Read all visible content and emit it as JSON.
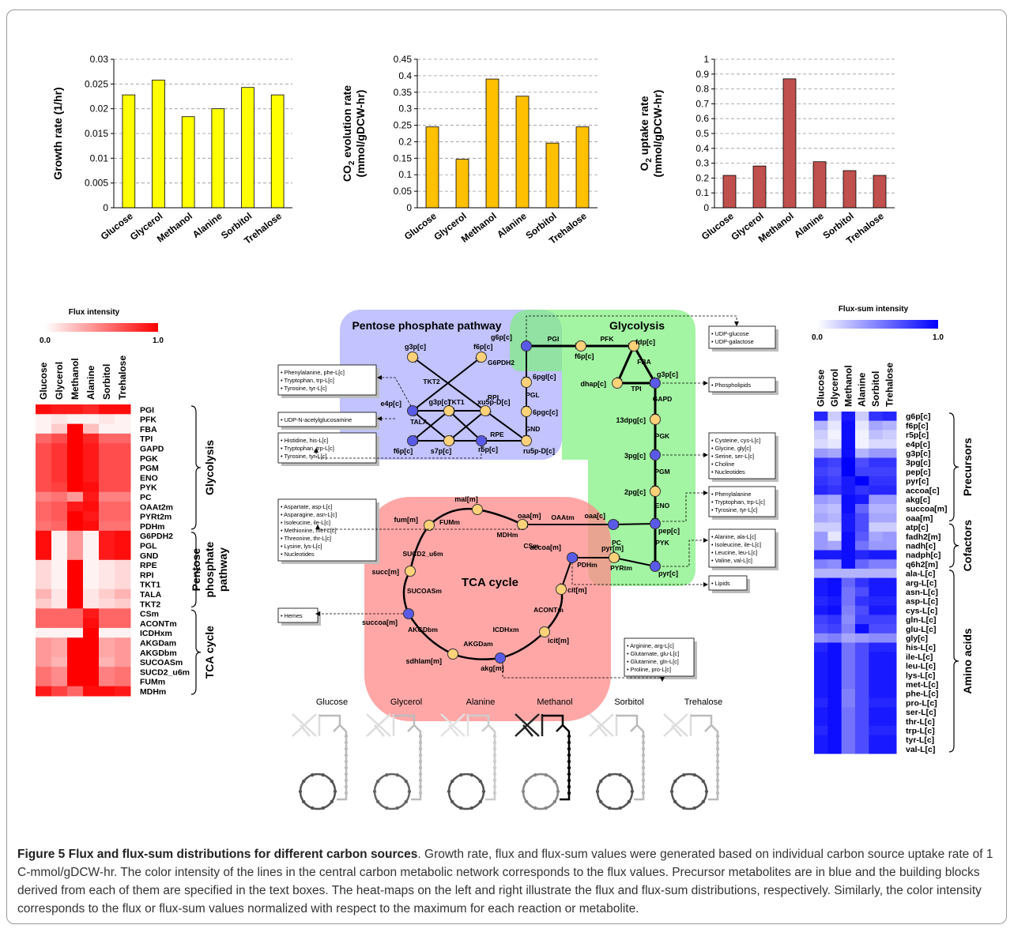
{
  "chart_data": [
    {
      "type": "bar",
      "ylabel": "Growth rate (1/hr)",
      "categories": [
        "Glucose",
        "Glycerol",
        "Methanol",
        "Alanine",
        "Sorbitol",
        "Trehalose"
      ],
      "values": [
        0.0228,
        0.0258,
        0.0184,
        0.02,
        0.0243,
        0.0228
      ],
      "ylim": [
        0,
        0.03
      ],
      "yticks": [
        "0",
        "0.005",
        "0.01",
        "0.015",
        "0.02",
        "0.025",
        "0.03"
      ],
      "grid": true,
      "color": "#ffff00"
    },
    {
      "type": "bar",
      "ylabel_line1": "CO",
      "ylabel_sub": "2",
      "ylabel_line1_rest": " evolution rate",
      "ylabel_line2": "(mmol/gDCW-hr)",
      "categories": [
        "Glucose",
        "Glycerol",
        "Methanol",
        "Alanine",
        "Sorbitol",
        "Trehalose"
      ],
      "values": [
        0.245,
        0.147,
        0.39,
        0.338,
        0.196,
        0.245
      ],
      "ylim": [
        0,
        0.45
      ],
      "yticks": [
        "0",
        "0.05",
        "0.1",
        "0.15",
        "0.2",
        "0.25",
        "0.3",
        "0.35",
        "0.4",
        "0.45"
      ],
      "grid": true,
      "color": "#ffc000"
    },
    {
      "type": "bar",
      "ylabel_line1": "O",
      "ylabel_sub": "2",
      "ylabel_line1_rest": " uptake rate",
      "ylabel_line2": "(mmol/gDCW-hr)",
      "categories": [
        "Glucose",
        "Glycerol",
        "Methanol",
        "Alanine",
        "Sorbitol",
        "Trehalose"
      ],
      "values": [
        0.218,
        0.281,
        0.868,
        0.31,
        0.25,
        0.218
      ],
      "ylim": [
        0,
        1
      ],
      "yticks": [
        "0",
        "0.1",
        "0.2",
        "0.3",
        "0.4",
        "0.5",
        "0.6",
        "0.7",
        "0.8",
        "0.9",
        "1"
      ],
      "grid": true,
      "color": "#c0504d"
    },
    {
      "type": "heatmap",
      "title": "Flux intensity",
      "scale_min": "0.0",
      "scale_max": "1.0",
      "columns": [
        "Glucose",
        "Glycerol",
        "Methanol",
        "Alanine",
        "Sorbitol",
        "Trehalose"
      ],
      "rows": [
        "PGI",
        "PFK",
        "FBA",
        "TPI",
        "GAPD",
        "PGK",
        "PGM",
        "ENO",
        "PYK",
        "PC",
        "OAAt2m",
        "PYRt2m",
        "PDHm",
        "G6PDH2",
        "PGL",
        "GND",
        "RPE",
        "RPI",
        "TKT1",
        "TALA",
        "TKT2",
        "CSm",
        "ACONTm",
        "ICDHxm",
        "AKGDam",
        "AKGDbm",
        "SUCOASm",
        "SUCD2_u6m",
        "FUMm",
        "MDHm"
      ],
      "groups": [
        "Glycolysis",
        "Pentose phosphate pathway",
        "TCA cycle"
      ],
      "values": [
        [
          0.95,
          0.9,
          0.9,
          0.85,
          0.95,
          0.95
        ],
        [
          0.05,
          0.1,
          0.05,
          0.05,
          0.1,
          0.05
        ],
        [
          0.05,
          0.2,
          1,
          0.25,
          0.05,
          0.05
        ],
        [
          0.6,
          0.7,
          1,
          0.85,
          0.6,
          0.6
        ],
        [
          0.7,
          0.8,
          1,
          0.9,
          0.7,
          0.7
        ],
        [
          0.7,
          0.8,
          1,
          0.9,
          0.7,
          0.7
        ],
        [
          0.7,
          0.8,
          1,
          0.9,
          0.7,
          0.7
        ],
        [
          0.7,
          0.8,
          1,
          0.9,
          0.7,
          0.7
        ],
        [
          0.7,
          0.75,
          1,
          0.95,
          0.7,
          0.7
        ],
        [
          0.5,
          0.55,
          0.4,
          0.9,
          0.5,
          0.5
        ],
        [
          0.6,
          0.65,
          0.9,
          0.95,
          0.6,
          0.6
        ],
        [
          0.6,
          0.65,
          1,
          0.9,
          0.6,
          0.6
        ],
        [
          0.55,
          0.6,
          1,
          0.95,
          0.55,
          0.55
        ],
        [
          0.95,
          0.05,
          0.4,
          0.05,
          0.9,
          0.95
        ],
        [
          0.95,
          0.05,
          0.4,
          0.05,
          0.9,
          0.95
        ],
        [
          0.95,
          0.05,
          0.4,
          0.05,
          0.9,
          0.95
        ],
        [
          0.15,
          0.05,
          1,
          0.05,
          0.1,
          0.15
        ],
        [
          0.15,
          0.05,
          1,
          0.05,
          0.1,
          0.15
        ],
        [
          0.15,
          0.05,
          1,
          0.05,
          0.1,
          0.15
        ],
        [
          0.3,
          0.1,
          1,
          0.1,
          0.2,
          0.3
        ],
        [
          0.2,
          0.1,
          1,
          0.1,
          0.15,
          0.2
        ],
        [
          0.6,
          0.6,
          0.6,
          0.9,
          0.6,
          0.6
        ],
        [
          0.6,
          0.6,
          0.6,
          0.95,
          0.6,
          0.6
        ],
        [
          0.05,
          0.05,
          0.05,
          1,
          0.05,
          0.05
        ],
        [
          0.4,
          0.35,
          1,
          1,
          0.35,
          0.4
        ],
        [
          0.4,
          0.35,
          1,
          1,
          0.35,
          0.4
        ],
        [
          0.4,
          0.3,
          1,
          1,
          0.3,
          0.4
        ],
        [
          0.55,
          0.45,
          1,
          1,
          0.5,
          0.55
        ],
        [
          0.55,
          0.45,
          1,
          1,
          0.5,
          0.55
        ],
        [
          0.9,
          0.75,
          0.6,
          0.95,
          0.95,
          0.9
        ]
      ]
    },
    {
      "type": "heatmap",
      "title": "Flux-sum intensity",
      "scale_min": "0.0",
      "scale_max": "1.0",
      "columns": [
        "Glucose",
        "Glycerol",
        "Methanol",
        "Alanine",
        "Sorbitol",
        "Trehalose"
      ],
      "rows": [
        "g6p[c]",
        "f6p[c]",
        "r5p[c]",
        "e4p[c]",
        "g3p[c]",
        "3pg[c]",
        "pep[c]",
        "pyr[c]",
        "accoa[c]",
        "akg[c]",
        "succoa[m]",
        "oaa[m]",
        "atp[c]",
        "fadh2[m]",
        "nadh[c]",
        "nadph[c]",
        "q6h2[m]",
        "ala-L[c]",
        "arg-L[c]",
        "asn-L[c]",
        "asp-L[c]",
        "cys-L[c]",
        "gln-L[c]",
        "glu-L[c]",
        "gly[c]",
        "his-L[c]",
        "ile-L[c]",
        "leu-L[c]",
        "lys-L[c]",
        "met-L[c]",
        "phe-L[c]",
        "pro-L[c]",
        "ser-L[c]",
        "thr-L[c]",
        "trp-L[c]",
        "tyr-L[c]",
        "val-L[c]"
      ],
      "groups": [
        "Precursors",
        "Cofactors",
        "Amino acids"
      ],
      "values": [
        [
          0.85,
          0.2,
          0.9,
          0.2,
          0.8,
          0.85
        ],
        [
          0.3,
          0.1,
          0.95,
          0.1,
          0.35,
          0.3
        ],
        [
          0.2,
          0.05,
          0.95,
          0.05,
          0.25,
          0.2
        ],
        [
          0.15,
          0.1,
          0.95,
          0.05,
          0.15,
          0.15
        ],
        [
          0.4,
          0.35,
          0.95,
          0.3,
          0.4,
          0.4
        ],
        [
          0.8,
          0.75,
          1,
          0.7,
          0.8,
          0.8
        ],
        [
          0.75,
          0.7,
          1,
          0.75,
          0.75,
          0.75
        ],
        [
          0.8,
          0.75,
          0.9,
          1,
          0.8,
          0.8
        ],
        [
          0.85,
          0.8,
          0.9,
          0.8,
          0.85,
          0.85
        ],
        [
          0.4,
          0.35,
          0.95,
          0.9,
          0.4,
          0.4
        ],
        [
          0.3,
          0.25,
          0.95,
          0.6,
          0.3,
          0.3
        ],
        [
          0.35,
          0.3,
          0.9,
          0.7,
          0.35,
          0.35
        ],
        [
          0.2,
          0.2,
          0.9,
          0.7,
          0.2,
          0.2
        ],
        [
          0.4,
          0.1,
          0.95,
          0.65,
          0.35,
          0.4
        ],
        [
          0.4,
          0.35,
          0.95,
          0.55,
          0.4,
          0.4
        ],
        [
          0.9,
          0.9,
          0.95,
          0.85,
          0.9,
          0.9
        ],
        [
          0.5,
          0.45,
          0.95,
          0.6,
          0.5,
          0.5
        ],
        [
          0.3,
          0.3,
          0.3,
          0.3,
          0.3,
          0.3
        ],
        [
          0.9,
          0.95,
          0.6,
          0.8,
          0.9,
          0.9
        ],
        [
          0.9,
          0.95,
          0.55,
          0.7,
          0.9,
          0.9
        ],
        [
          0.85,
          0.9,
          0.55,
          0.8,
          0.85,
          0.85
        ],
        [
          0.9,
          0.95,
          0.5,
          0.7,
          0.9,
          0.9
        ],
        [
          0.75,
          0.8,
          0.45,
          0.75,
          0.75,
          0.75
        ],
        [
          0.7,
          0.75,
          0.5,
          0.95,
          0.7,
          0.7
        ],
        [
          0.45,
          0.5,
          0.35,
          0.4,
          0.45,
          0.45
        ],
        [
          0.85,
          0.95,
          0.55,
          0.7,
          0.85,
          0.85
        ],
        [
          0.9,
          0.95,
          0.55,
          0.7,
          0.9,
          0.9
        ],
        [
          0.9,
          0.95,
          0.55,
          0.7,
          0.9,
          0.9
        ],
        [
          0.9,
          0.95,
          0.55,
          0.7,
          0.9,
          0.9
        ],
        [
          0.9,
          0.95,
          0.55,
          0.7,
          0.9,
          0.9
        ],
        [
          0.9,
          0.95,
          0.5,
          0.7,
          0.9,
          0.9
        ],
        [
          0.85,
          0.95,
          0.5,
          0.7,
          0.85,
          0.85
        ],
        [
          0.9,
          0.95,
          0.55,
          0.7,
          0.9,
          0.9
        ],
        [
          0.9,
          0.95,
          0.55,
          0.7,
          0.9,
          0.9
        ],
        [
          0.85,
          0.95,
          0.55,
          0.7,
          0.85,
          0.85
        ],
        [
          0.9,
          0.95,
          0.55,
          0.7,
          0.9,
          0.9
        ],
        [
          0.9,
          0.95,
          0.55,
          0.7,
          0.9,
          0.9
        ]
      ]
    }
  ],
  "network": {
    "regions": [
      "Pentose phosphate pathway",
      "Glycolysis",
      "TCA cycle"
    ],
    "metabolites": {
      "g6p": "g6p[c]",
      "f6p": "f6p[c]",
      "fdp": "fdp[c]",
      "dhap": "dhap[c]",
      "g3p": "g3p[c]",
      "13dpg": "13dpg[c]",
      "3pg": "3pg[c]",
      "2pg": "2pg[c]",
      "pep": "pep[c]",
      "pyr": "pyr[c]",
      "oaac": "oaa[c]",
      "pyrm": "pyr[m]",
      "accoa": "accoa[m]",
      "oaam": "oaa[m]",
      "malm": "mal[m]",
      "fumm": "fum[m]",
      "succm": "succ[m]",
      "succoa": "succoa[m]",
      "sdhlam": "sdhlam[m]",
      "akgm": "akg[m]",
      "icit": "icit[m]",
      "cit": "cit[m]",
      "ppp_6pgl": "6pgl[c]",
      "ppp_6pgc": "6pgc[c]",
      "ppp_ru5p": "ru5p-D[c]",
      "ppp_xu5p": "xu5p-D[c]",
      "ppp_r5p": "r5p[c]",
      "ppp_s7p": "s7p[c]",
      "ppp_g3p2": "g3p[c]",
      "ppp_e4p": "e4p[c]",
      "ppp_f6p2": "f6p[c]",
      "ppp_g3p1": "g3p[c]",
      "ppp_f6p1": "f6p[c]"
    },
    "reactions": {
      "PGI": "PGI",
      "PFK": "PFK",
      "FBA": "FBA",
      "TPI": "TPI",
      "GAPD": "GAPD",
      "PGK": "PGK",
      "PGM": "PGM",
      "ENO": "ENO",
      "PYK": "PYK",
      "PC": "PC",
      "OAAtm": "OAAtm",
      "PYRtm": "PYRtm",
      "PDHm": "PDHm",
      "CSm": "CSm",
      "ACONTm": "ACONTm",
      "ICDHxm": "ICDHxm",
      "AKGDam": "AKGDam",
      "AKGDbm": "AKGDbm",
      "SUCOASm": "SUCOASm",
      "SUCD2_u6m": "SUCD2_u6m",
      "FUMm": "FUMm",
      "MDHm": "MDHm",
      "G6PDH2": "G6PDH2",
      "PGL": "PGL",
      "GND": "GND",
      "RPE": "RPE",
      "RPI": "RPI",
      "TKT1": "TKT1",
      "TKT2": "TKT2",
      "TALA": "TALA"
    },
    "boxes": {
      "udp": [
        "• UDP-glucose",
        "• UDP-galactose"
      ],
      "phospho": [
        "• Phospholipids"
      ],
      "phe": [
        "• Phenylalanine, phe-L[c]",
        "• Tryptophan, trp-L[c]",
        "• Tyrosine, tyr-L[c]"
      ],
      "udpn": [
        "• UDP-N-acetylglucosamine"
      ],
      "his": [
        "• Histidine, his-L[c]",
        "• Tryptophan, trp-L[c]",
        "• Tyrosine, tyr-L[c]"
      ],
      "cys": [
        "• Cysteine, cys-L[c]",
        "• Glycine, gly[c]",
        "• Serine, ser-L[c]",
        "• Choline",
        "• Nucleotides"
      ],
      "aro": [
        "• Phenylalanine",
        "• Tryptophan, trp-L[c]",
        "• Tyrosine, tyr-L[c]"
      ],
      "asp": [
        "• Aspartate, asp-L[c]",
        "• Asparagine, asn-L[c]",
        "• Isoleucine, ile-L[c]",
        "• Methionine, met-L[c]",
        "• Threonine, thr-L[c]",
        "• Lysine, lys-L[c]",
        "• Nucleotides"
      ],
      "ala": [
        "• Alanine, ala-L[c]",
        "• Isoleucine, ile-L[c]",
        "• Leucine, leu-L[c]",
        "• Valine, val-L[c]"
      ],
      "lipids": [
        "• Lipids"
      ],
      "hemes": [
        "• Hemes"
      ],
      "arg": [
        "• Arginine, arg-L[c]",
        "• Glutamate, glu-L[c]",
        "• Glutamine, gln-L[c]",
        "• Proline, pro-L[c]"
      ]
    }
  },
  "thumbnails": {
    "labels": [
      "Glucose",
      "Glycerol",
      "Alanine",
      "Methanol",
      "Sorbitol",
      "Trehalose"
    ]
  },
  "caption": {
    "bold": "Figure 5 Flux and flux-sum distributions for different carbon sources",
    "text": ". Growth rate, flux and flux-sum values were generated based on individual carbon source uptake rate of 1 C-mmol/gDCW-hr. The color intensity of the lines in the central carbon metabolic network corresponds to the flux values. Precursor metabolites are in blue and the building blocks derived from each of them are specified in the text boxes. The heat-maps on the left and right illustrate the flux and flux-sum distributions, respectively. Similarly, the color intensity corresponds to the flux or flux-sum values normalized with respect to the maximum for each reaction or metabolite."
  }
}
